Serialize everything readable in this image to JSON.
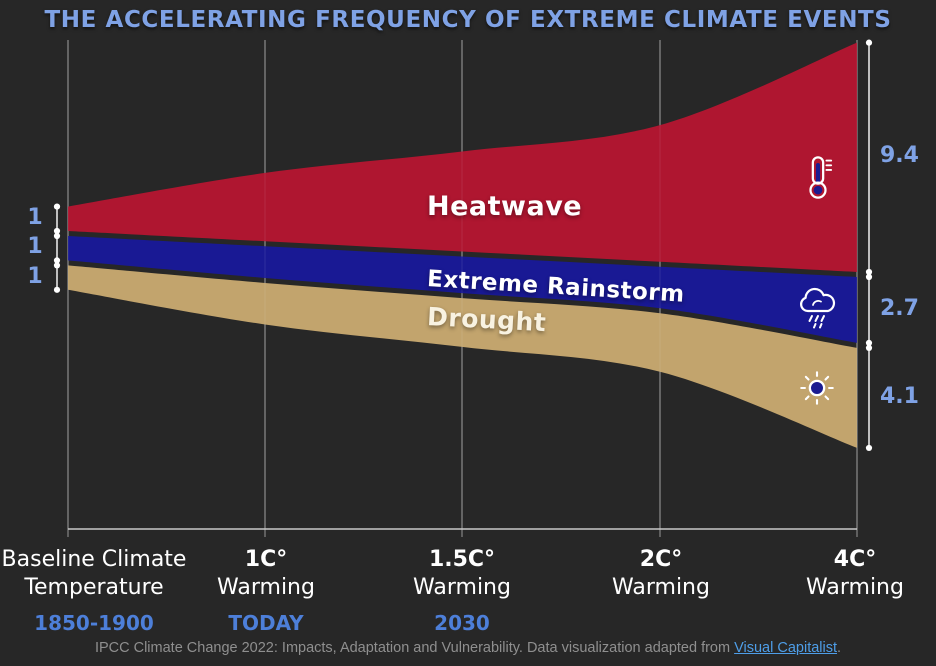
{
  "title": "THE ACCELERATING FREQUENCY OF EXTREME CLIMATE EVENTS",
  "chart_data": {
    "type": "area",
    "title": "THE ACCELERATING FREQUENCY OF EXTREME CLIMATE EVENTS",
    "grid": true,
    "legend_position": "labels-on-bands",
    "x_ticks": [
      {
        "line1": "Baseline Climate",
        "line2": "Temperature",
        "sublabel": "1850-1900"
      },
      {
        "line1": "1C°",
        "line2": "Warming",
        "sublabel": "TODAY"
      },
      {
        "line1": "1.5C°",
        "line2": "Warming",
        "sublabel": "2030"
      },
      {
        "line1": "2C°",
        "line2": "Warming",
        "sublabel": ""
      },
      {
        "line1": "4C°",
        "line2": "Warming",
        "sublabel": ""
      }
    ],
    "series": [
      {
        "name": "Heatwave",
        "color": "#AF1630",
        "icon": "thermometer",
        "values": [
          1,
          2.8,
          4.1,
          5.6,
          9.4
        ],
        "left_label": "1",
        "right_label": "9.4"
      },
      {
        "name": "Extreme Rainstorm",
        "color": "#191994",
        "icon": "rain-cloud",
        "values": [
          1,
          1.3,
          1.5,
          1.7,
          2.7
        ],
        "left_label": "1",
        "right_label": "2.7"
      },
      {
        "name": "Drought",
        "color": "#C2A46D",
        "icon": "sun",
        "values": [
          1,
          1.7,
          2.0,
          2.4,
          4.1
        ],
        "left_label": "1",
        "right_label": "4.1"
      }
    ]
  },
  "footer": {
    "text_before_link": "IPCC Climate Change 2022: Impacts, Adaptation and Vulnerability. Data visualization adapted from ",
    "link": "Visual Capitalist",
    "text_after_link": "."
  },
  "colors": {
    "background": "#272727",
    "title_blue": "#7FA2E5",
    "sublabel_blue": "#4D7FD9",
    "heatwave_red": "#AF1630",
    "rainstorm_navy": "#191994",
    "drought_tan": "#C2A46D",
    "grid_gray": "#B4B4B4",
    "footer_gray": "#8F8F8F",
    "link_blue": "#4E9EE8",
    "icon_accent_navy": "#1B1B90"
  }
}
